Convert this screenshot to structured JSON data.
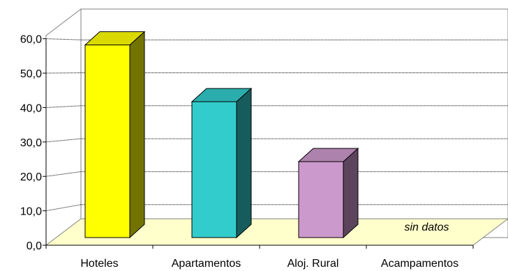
{
  "chart_data": {
    "type": "bar",
    "title": "",
    "xlabel": "",
    "ylabel": "",
    "categories": [
      "Hoteles",
      "Apartamentos",
      "Aloj. Rural",
      "Acampamentos"
    ],
    "values": [
      55.3,
      39.0,
      21.8,
      null
    ],
    "ylim": [
      0,
      60
    ],
    "yticks": [
      "0,0",
      "10,0",
      "20,0",
      "30,0",
      "40,0",
      "50,0",
      "60,0"
    ],
    "grid": true,
    "legend": "none",
    "bar_colors": [
      "#FFFF00",
      "#33CCCC",
      "#CC99CC"
    ],
    "floor_color": "#FFFFCC",
    "annotations": [
      {
        "category": "Acampamentos",
        "text": "sin datos"
      }
    ]
  }
}
